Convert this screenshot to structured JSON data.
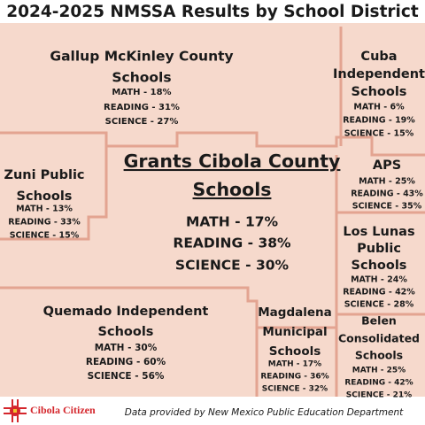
{
  "title": "2024-2025 NMSSA Results by School District",
  "districts": [
    {
      "name": [
        "Gallup McKinley County",
        "Schools"
      ],
      "stats": [
        "MATH - 18%",
        "READING - 31%",
        "SCIENCE - 27%"
      ]
    },
    {
      "name": [
        "Cuba",
        "Independent",
        "Schools"
      ],
      "stats": [
        "MATH - 6%",
        "READING - 19%",
        "SCIENCE - 15%"
      ]
    },
    {
      "name": [
        "Grants Cibola County",
        "Schools"
      ],
      "stats": [
        "MATH - 17%",
        "READING - 38%",
        "SCIENCE - 30%"
      ]
    },
    {
      "name": [
        "Zuni Public",
        "Schools"
      ],
      "stats": [
        "MATH - 13%",
        "READING - 33%",
        "SCIENCE - 15%"
      ]
    },
    {
      "name": [
        "APS"
      ],
      "stats": [
        "MATH - 25%",
        "READING - 43%",
        "SCIENCE - 35%"
      ]
    },
    {
      "name": [
        "Los Lunas",
        "Public",
        "Schools"
      ],
      "stats": [
        "MATH - 24%",
        "READING - 42%",
        "SCIENCE - 28%"
      ]
    },
    {
      "name": [
        "Quemado Independent",
        "Schools"
      ],
      "stats": [
        "MATH - 30%",
        "READING - 60%",
        "SCIENCE - 56%"
      ]
    },
    {
      "name": [
        "Magdalena",
        "Municipal",
        "Schools"
      ],
      "stats": [
        "MATH - 17%",
        "READING - 36%",
        "SCIENCE - 32%"
      ]
    },
    {
      "name": [
        "Belen",
        "Consolidated",
        "Schools"
      ],
      "stats": [
        "MATH - 25%",
        "READING - 42%",
        "SCIENCE - 21%"
      ]
    }
  ],
  "footer": {
    "logo": "Cibola Citizen",
    "credit": "Data provided by New Mexico Public Education Department"
  }
}
